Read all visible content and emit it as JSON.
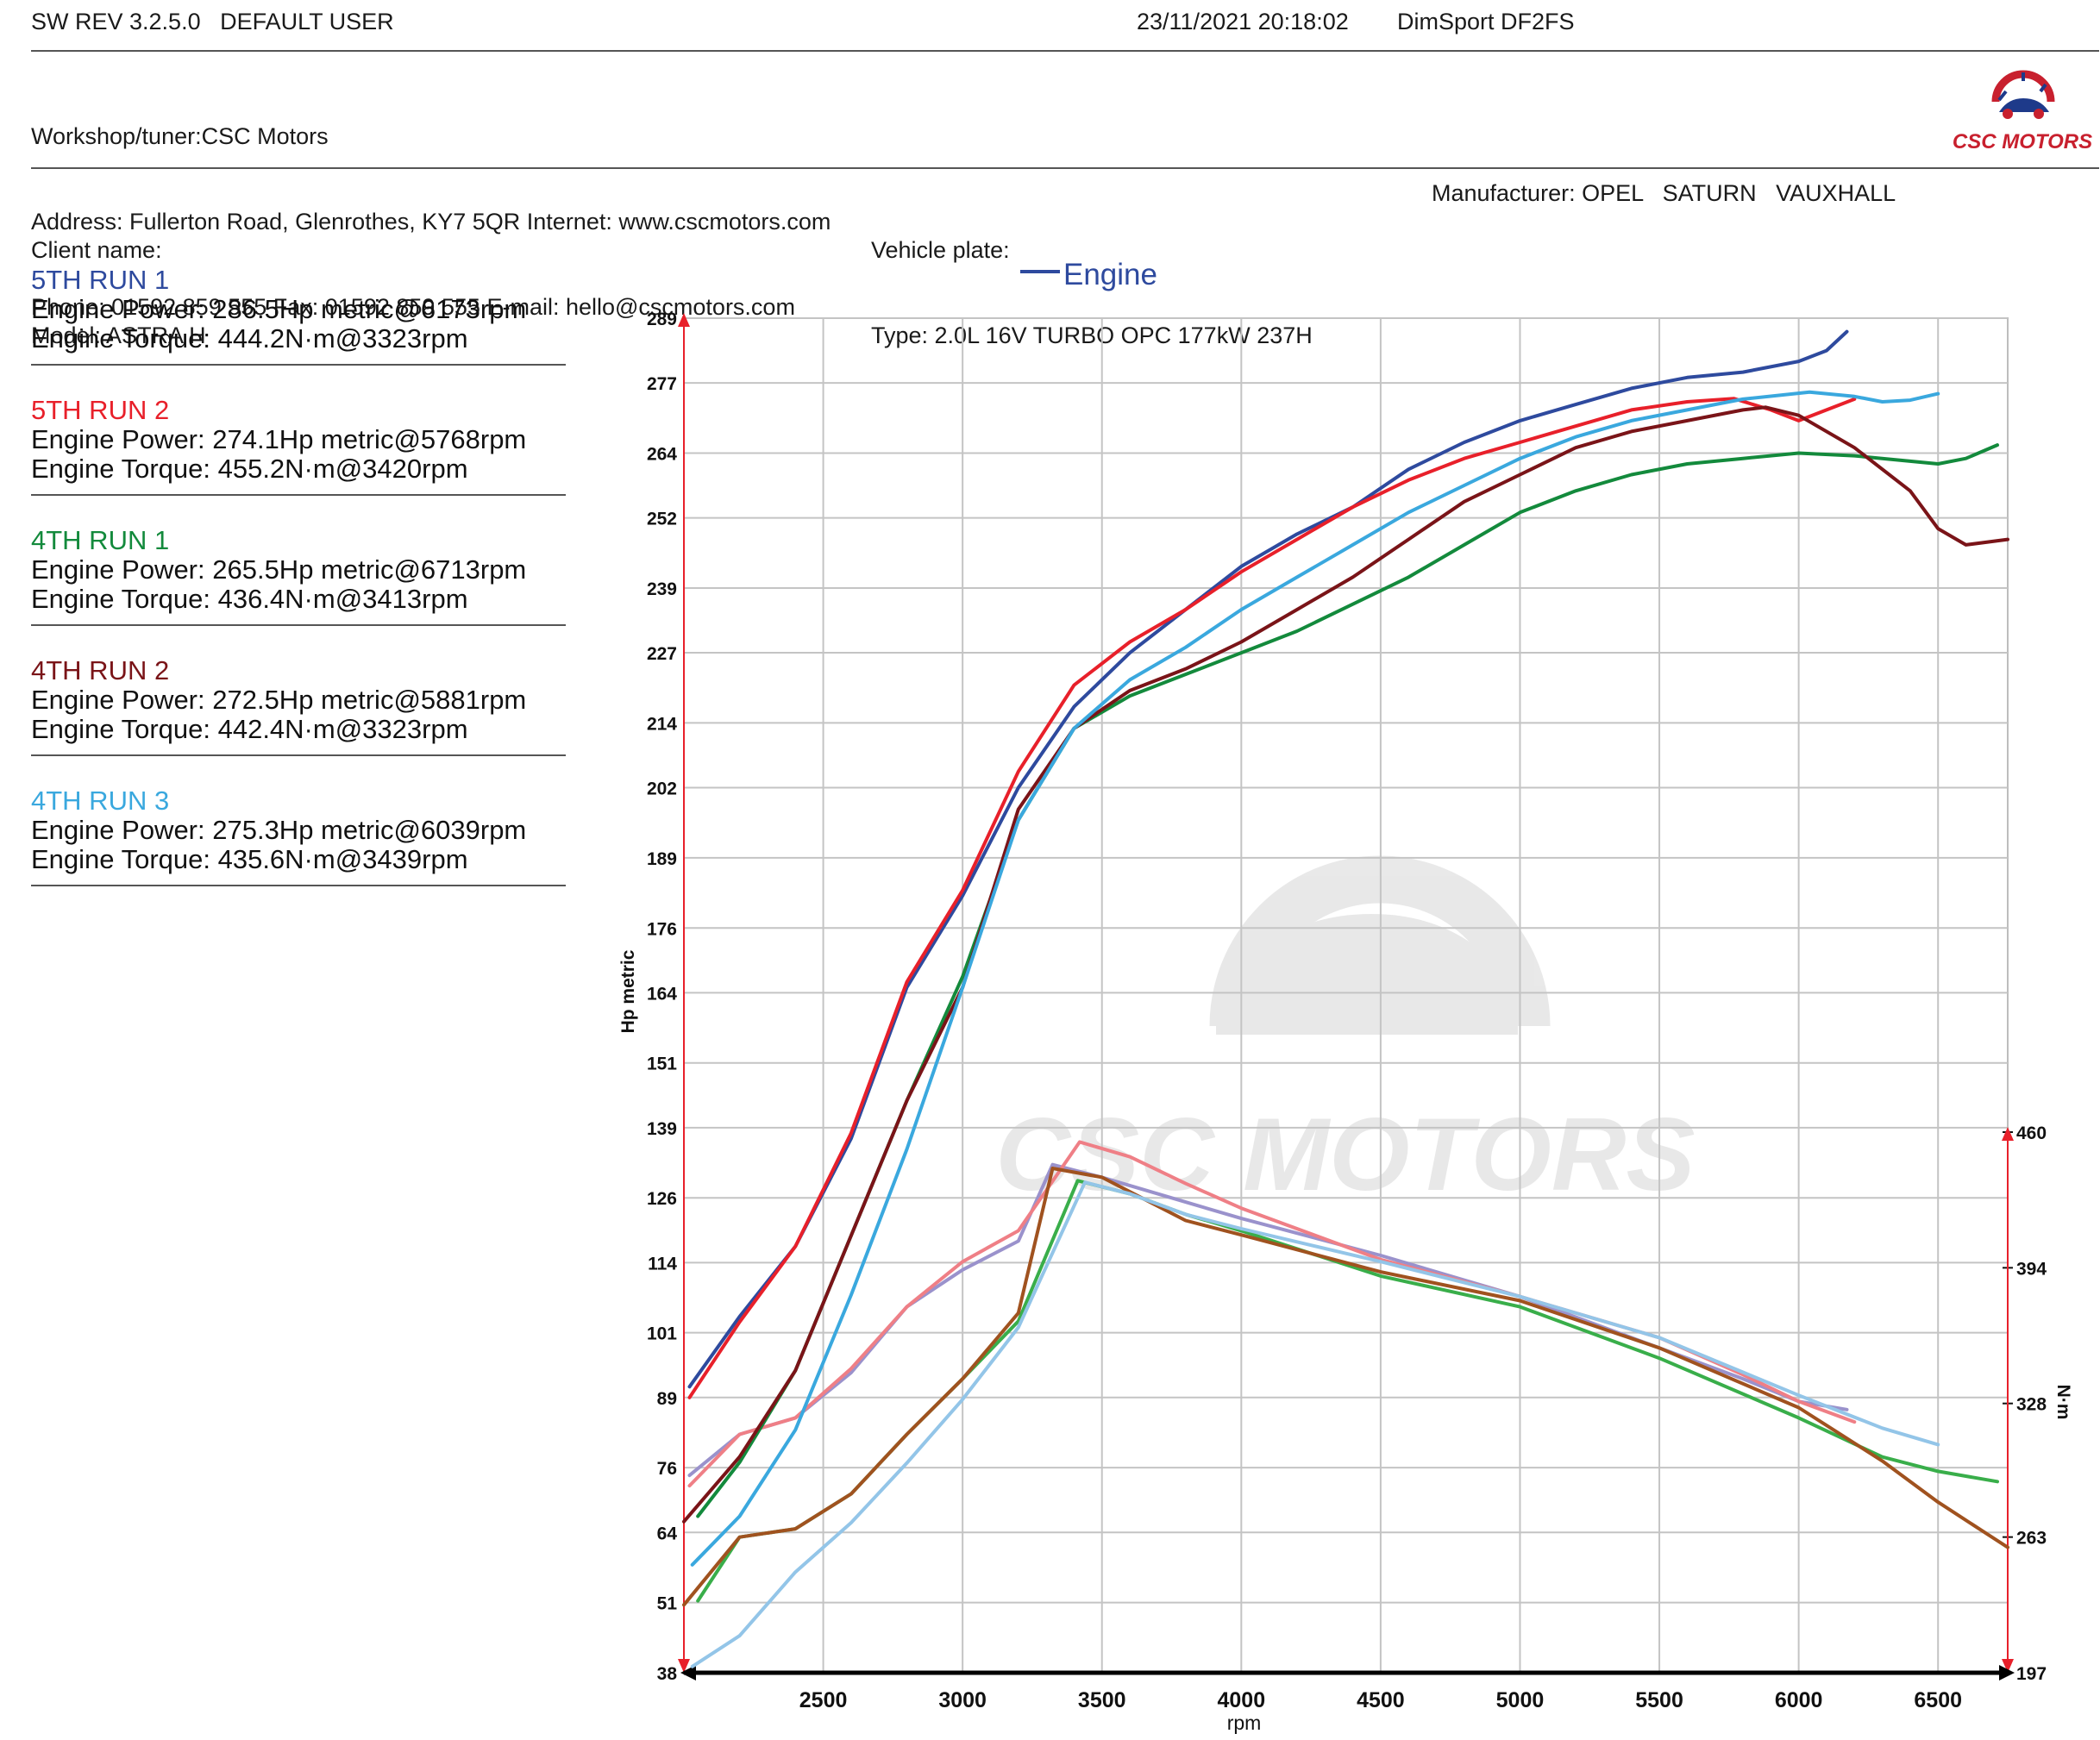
{
  "header": {
    "software": "SW REV 3.2.5.0   DEFAULT USER",
    "datetime": "23/11/2021 20:18:02",
    "device": "DimSport DF2FS"
  },
  "workshop": {
    "line1": "Workshop/tuner:CSC Motors",
    "line2": "Address: Fullerton Road, Glenrothes, KY7 5QR Internet: www.cscmotors.com",
    "line3": "Phone: 01592 859 555 Fax: 01592 859 555 E-mail: hello@cscmotors.com",
    "logo_text": "CSC MOTORS"
  },
  "vehicle": {
    "client": "Client name:",
    "model": "Model: ASTRA H",
    "plate": "Vehicle plate:",
    "type": "Type: 2.0L 16V TURBO OPC 177kW 237H",
    "manufacturer": "Manufacturer: OPEL   SATURN   VAUXHALL"
  },
  "runs": [
    {
      "name": "5TH RUN 1",
      "power": "Engine Power: 286.5Hp metric@6173rpm",
      "torque": "Engine Torque: 444.2N·m@3323rpm",
      "color": "#2e4a9e"
    },
    {
      "name": "5TH RUN 2",
      "power": "Engine Power: 274.1Hp metric@5768rpm",
      "torque": "Engine Torque: 455.2N·m@3420rpm",
      "color": "#e8202a"
    },
    {
      "name": "4TH RUN 1",
      "power": "Engine Power: 265.5Hp metric@6713rpm",
      "torque": "Engine Torque: 436.4N·m@3413rpm",
      "color": "#138a3c"
    },
    {
      "name": "4TH RUN 2",
      "power": "Engine Power: 272.5Hp metric@5881rpm",
      "torque": "Engine Torque: 442.4N·m@3323rpm",
      "color": "#7a1418"
    },
    {
      "name": "4TH RUN 3",
      "power": "Engine Power: 275.3Hp metric@6039rpm",
      "torque": "Engine Torque: 435.6N·m@3439rpm",
      "color": "#3aa8de"
    }
  ],
  "chart_data": {
    "type": "line",
    "legend": "Engine",
    "legend_color": "#2e4a9e",
    "xlabel": "rpm",
    "ylabel": "Hp metric",
    "y2label": "N·m",
    "xlim": [
      2000,
      6750
    ],
    "ylim": [
      38,
      289
    ],
    "y2lim": [
      197,
      460
    ],
    "x_ticks": [
      2500,
      3000,
      3500,
      4000,
      4500,
      5000,
      5500,
      6000,
      6500
    ],
    "y_ticks": [
      "38",
      "51",
      "64",
      "76",
      "89",
      "101",
      "114",
      "126",
      "139",
      "151",
      "164",
      "176",
      "189",
      "202",
      "214",
      "227",
      "239",
      "252",
      "264",
      "277",
      "289"
    ],
    "y2_ticks": [
      "197",
      "263",
      "328",
      "394",
      "460"
    ],
    "grid": true,
    "power_series": [
      {
        "name": "5TH RUN 1",
        "color": "#2e4a9e",
        "x": [
          2020,
          2200,
          2400,
          2600,
          2800,
          3000,
          3200,
          3400,
          3600,
          3800,
          4000,
          4200,
          4400,
          4600,
          4800,
          5000,
          5200,
          5400,
          5600,
          5800,
          6000,
          6100,
          6173
        ],
        "y": [
          91,
          104,
          117,
          137,
          165,
          182,
          202,
          217,
          227,
          235,
          243,
          249,
          254,
          261,
          266,
          270,
          273,
          276,
          278,
          279,
          281,
          283,
          286.5
        ]
      },
      {
        "name": "5TH RUN 2",
        "color": "#e8202a",
        "x": [
          2020,
          2200,
          2400,
          2600,
          2800,
          3000,
          3200,
          3400,
          3600,
          3800,
          4000,
          4200,
          4400,
          4600,
          4800,
          5000,
          5200,
          5400,
          5600,
          5768,
          5900,
          6000,
          6100,
          6200
        ],
        "y": [
          89,
          103,
          117,
          138,
          166,
          183,
          205,
          221,
          229,
          235,
          242,
          248,
          254,
          259,
          263,
          266,
          269,
          272,
          273.5,
          274.1,
          272,
          270,
          272,
          274
        ]
      },
      {
        "name": "4TH RUN 1",
        "color": "#138a3c",
        "x": [
          2050,
          2200,
          2400,
          2600,
          2800,
          3000,
          3200,
          3400,
          3600,
          3800,
          4000,
          4200,
          4400,
          4600,
          4800,
          5000,
          5200,
          5400,
          5600,
          5800,
          6000,
          6200,
          6400,
          6500,
          6600,
          6713
        ],
        "y": [
          67,
          77,
          94,
          119,
          144,
          167,
          196,
          213,
          219,
          223,
          227,
          231,
          236,
          241,
          247,
          253,
          257,
          260,
          262,
          263,
          264,
          263.5,
          262.5,
          262,
          263,
          265.5
        ]
      },
      {
        "name": "4TH RUN 2",
        "color": "#7a1418",
        "x": [
          2000,
          2200,
          2400,
          2600,
          2800,
          3000,
          3200,
          3400,
          3600,
          3800,
          4000,
          4200,
          4400,
          4600,
          4800,
          5000,
          5200,
          5400,
          5600,
          5800,
          5881,
          6000,
          6200,
          6400,
          6500,
          6600,
          6750
        ],
        "y": [
          66,
          78,
          94,
          119,
          144,
          165,
          198,
          213,
          220,
          224,
          229,
          235,
          241,
          248,
          255,
          260,
          265,
          268,
          270,
          272,
          272.5,
          271,
          265,
          257,
          250,
          247,
          248
        ]
      },
      {
        "name": "4TH RUN 3",
        "color": "#3aa8de",
        "x": [
          2030,
          2200,
          2400,
          2600,
          2800,
          3000,
          3200,
          3400,
          3600,
          3800,
          4000,
          4200,
          4400,
          4600,
          4800,
          5000,
          5200,
          5400,
          5600,
          5800,
          6039,
          6200,
          6300,
          6400,
          6500
        ],
        "y": [
          58,
          67,
          83,
          108,
          135,
          165,
          196,
          213,
          222,
          228,
          235,
          241,
          247,
          253,
          258,
          263,
          267,
          270,
          272,
          274,
          275.3,
          274.5,
          273.5,
          273.8,
          275
        ]
      }
    ],
    "torque_series": [
      {
        "name": "5TH RUN 1",
        "color": "#9a92cc",
        "x": [
          2020,
          2200,
          2400,
          2600,
          2800,
          3000,
          3200,
          3323,
          3500,
          3800,
          4000,
          4500,
          5000,
          5500,
          5800,
          6000,
          6173
        ],
        "y": [
          293,
          313,
          321,
          343,
          375,
          393,
          407,
          444.2,
          438,
          426,
          418,
          400,
          380,
          355,
          340,
          329,
          325
        ]
      },
      {
        "name": "5TH RUN 2",
        "color": "#ef7f86",
        "x": [
          2020,
          2200,
          2400,
          2600,
          2800,
          3000,
          3200,
          3420,
          3600,
          3800,
          4000,
          4500,
          5000,
          5500,
          5800,
          6000,
          6200
        ],
        "y": [
          288,
          313,
          321,
          345,
          375,
          397,
          412,
          455.2,
          448,
          435,
          423,
          398,
          380,
          360,
          342,
          329,
          319
        ]
      },
      {
        "name": "4TH RUN 1",
        "color": "#39ae4a",
        "x": [
          2050,
          2200,
          2400,
          2600,
          2800,
          3000,
          3200,
          3413,
          3600,
          3800,
          4000,
          4500,
          5000,
          5500,
          6000,
          6300,
          6500,
          6713
        ],
        "y": [
          232,
          263,
          267,
          284,
          313,
          340,
          368,
          436.4,
          430,
          420,
          412,
          390,
          375,
          350,
          321,
          302,
          295,
          290
        ]
      },
      {
        "name": "4TH RUN 2",
        "color": "#a0521f",
        "x": [
          2000,
          2200,
          2400,
          2600,
          2800,
          3000,
          3200,
          3323,
          3500,
          3800,
          4000,
          4500,
          5000,
          5500,
          6000,
          6300,
          6500,
          6750
        ],
        "y": [
          230,
          263,
          267,
          284,
          313,
          340,
          372,
          442.4,
          438,
          417,
          410,
          392,
          378,
          355,
          326,
          300,
          280,
          258
        ]
      },
      {
        "name": "4TH RUN 3",
        "color": "#93c5e8",
        "x": [
          2030,
          2200,
          2400,
          2600,
          2800,
          3000,
          3200,
          3439,
          3600,
          3800,
          4000,
          4500,
          5000,
          5500,
          6000,
          6300,
          6500
        ],
        "y": [
          200,
          215,
          246,
          270,
          299,
          330,
          365,
          435.6,
          430,
          420,
          413,
          397,
          380,
          360,
          332,
          316,
          308
        ]
      }
    ]
  }
}
